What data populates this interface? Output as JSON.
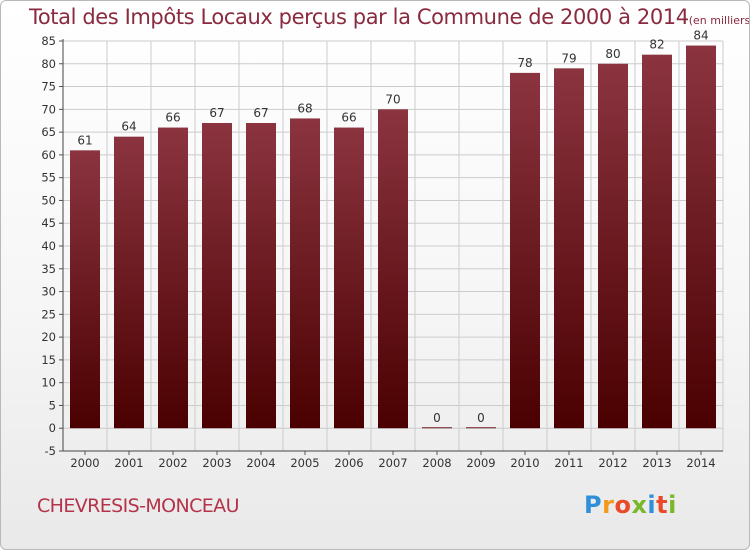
{
  "title": "Total des Impôts Locaux perçus par la Commune de 2000 à 2014",
  "unit_note": "(en milliers d'€)",
  "commune": "CHEVRESIS-MONCEAU",
  "logo": {
    "text": "Proxiti",
    "letters": [
      "P",
      "r",
      "o",
      "x",
      "i",
      "t",
      "i"
    ],
    "colors": [
      "#2f8fd8",
      "#f39a1c",
      "#e94b2a",
      "#7ab829",
      "#2f8fd8",
      "#e94b2a",
      "#7ab829"
    ]
  },
  "colors": {
    "title": "#8a2a3e",
    "bar_top": "#8b3440",
    "bar_bottom": "#4a0000",
    "commune": "#b5334a",
    "grid": "#cccccc"
  },
  "chart_data": {
    "type": "bar",
    "categories": [
      "2000",
      "2001",
      "2002",
      "2003",
      "2004",
      "2005",
      "2006",
      "2007",
      "2008",
      "2009",
      "2010",
      "2011",
      "2012",
      "2013",
      "2014"
    ],
    "values": [
      61,
      64,
      66,
      67,
      67,
      68,
      66,
      70,
      0,
      0,
      78,
      79,
      80,
      82,
      84
    ],
    "title": "Total des Impôts Locaux perçus par la Commune de 2000 à 2014",
    "ylim": [
      -5,
      85
    ],
    "yticks": [
      -5,
      0,
      5,
      10,
      15,
      20,
      25,
      30,
      35,
      40,
      45,
      50,
      55,
      60,
      65,
      70,
      75,
      80,
      85
    ],
    "grid": true
  }
}
